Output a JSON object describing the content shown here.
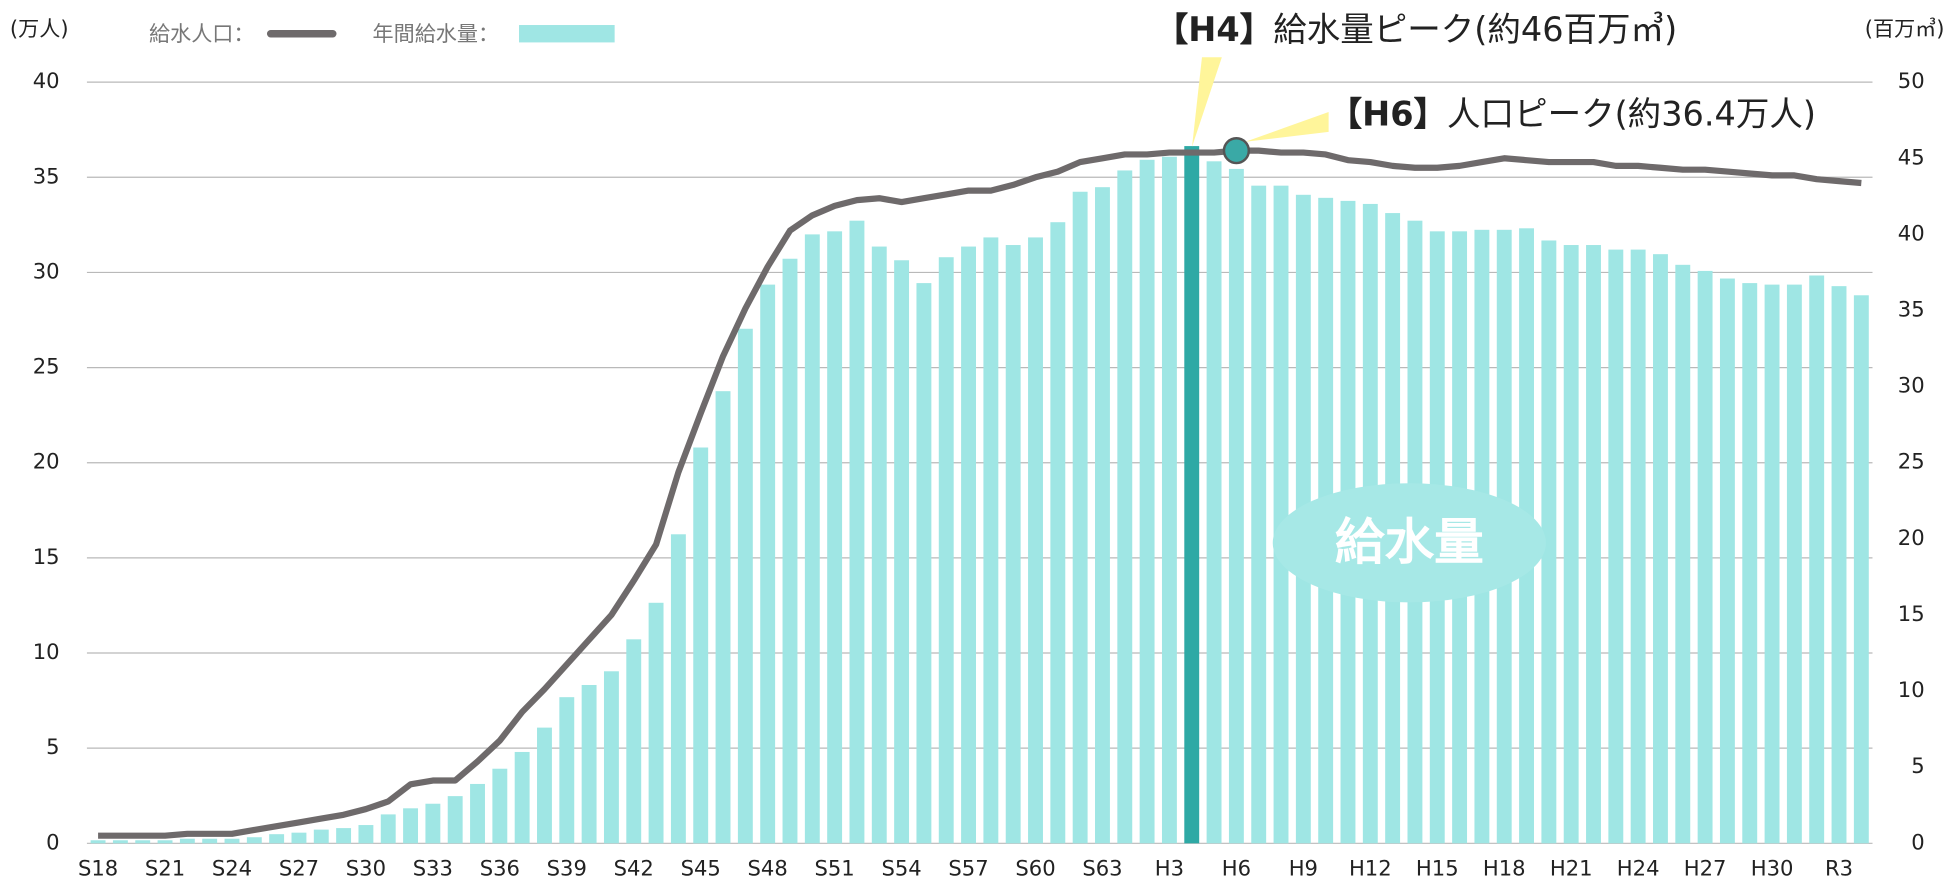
{
  "chart_data": {
    "type": "combo",
    "y_label": "(万人)",
    "y2_label": "(百万㎥)",
    "categories": [
      "S18",
      null,
      null,
      "S21",
      null,
      null,
      "S24",
      null,
      null,
      "S27",
      null,
      null,
      "S30",
      null,
      null,
      "S33",
      null,
      null,
      "S36",
      null,
      null,
      "S39",
      null,
      null,
      "S42",
      null,
      null,
      "S45",
      null,
      null,
      "S48",
      null,
      null,
      "S51",
      null,
      null,
      "S54",
      null,
      null,
      "S57",
      null,
      null,
      "S60",
      null,
      null,
      "S63",
      null,
      null,
      "H3",
      null,
      null,
      "H6",
      null,
      null,
      "H9",
      null,
      null,
      "H12",
      null,
      null,
      "H15",
      null,
      null,
      "H18",
      null,
      null,
      "H21",
      null,
      null,
      "H24",
      null,
      null,
      "H27",
      null,
      null,
      "H30",
      null,
      null,
      "R3",
      null
    ],
    "series": [
      {
        "name": "年間給水量：",
        "type": "bar",
        "axis": "y2",
        "color": "#9fe6e4",
        "peak_color": "#2ea9a5",
        "values": [
          0.2,
          0.2,
          0.2,
          0.2,
          0.3,
          0.3,
          0.3,
          0.4,
          0.6,
          0.7,
          0.9,
          1.0,
          1.2,
          1.9,
          2.3,
          2.6,
          3.1,
          3.9,
          4.9,
          6.0,
          7.6,
          9.6,
          10.4,
          11.3,
          13.4,
          15.8,
          20.3,
          26.0,
          29.7,
          33.8,
          36.7,
          38.4,
          40.0,
          40.2,
          40.9,
          39.2,
          38.3,
          36.8,
          38.5,
          39.2,
          39.8,
          39.3,
          39.8,
          40.8,
          42.8,
          43.1,
          44.2,
          44.9,
          45.1,
          45.8,
          44.8,
          44.3,
          43.2,
          43.2,
          42.6,
          42.4,
          42.2,
          42.0,
          41.4,
          40.9,
          40.2,
          40.2,
          40.3,
          40.3,
          40.4,
          39.6,
          39.3,
          39.3,
          39.0,
          39.0,
          38.7,
          38.0,
          37.6,
          37.1,
          36.8,
          36.7,
          36.7,
          37.3,
          36.6,
          36.0
        ]
      },
      {
        "name": "給水人口：",
        "type": "line",
        "axis": "y",
        "color": "#6e6a6b",
        "peak_color": "#3aa9a6",
        "values": [
          0.4,
          0.4,
          0.4,
          0.4,
          0.5,
          0.5,
          0.5,
          0.7,
          0.9,
          1.1,
          1.3,
          1.5,
          1.8,
          2.2,
          3.1,
          3.3,
          3.3,
          4.3,
          5.4,
          6.9,
          8.1,
          9.4,
          10.7,
          12.0,
          13.8,
          15.7,
          19.5,
          22.6,
          25.6,
          28.1,
          30.3,
          32.2,
          33.0,
          33.5,
          33.8,
          33.9,
          33.7,
          33.9,
          34.1,
          34.3,
          34.3,
          34.6,
          35.0,
          35.3,
          35.8,
          36.0,
          36.2,
          36.2,
          36.3,
          36.3,
          36.3,
          36.4,
          36.4,
          36.3,
          36.3,
          36.2,
          35.9,
          35.8,
          35.6,
          35.5,
          35.5,
          35.6,
          35.8,
          36.0,
          35.9,
          35.8,
          35.8,
          35.8,
          35.6,
          35.6,
          35.5,
          35.4,
          35.4,
          35.3,
          35.2,
          35.1,
          35.1,
          34.9,
          34.8,
          34.7
        ]
      }
    ],
    "ylim": [
      0,
      40
    ],
    "yticks": [
      0,
      5,
      10,
      15,
      20,
      25,
      30,
      35,
      40
    ],
    "y2lim": [
      0,
      50
    ],
    "y2ticks": [
      0,
      5,
      10,
      15,
      20,
      25,
      30,
      35,
      40,
      45,
      50
    ],
    "grid": true,
    "annotations": [
      {
        "label": "【H4】",
        "text": "給水量ピーク(約46百万㎥)"
      },
      {
        "label": "【H6】",
        "text": "人口ピーク(約36.4万人)"
      },
      {
        "text": "給水量"
      }
    ]
  }
}
